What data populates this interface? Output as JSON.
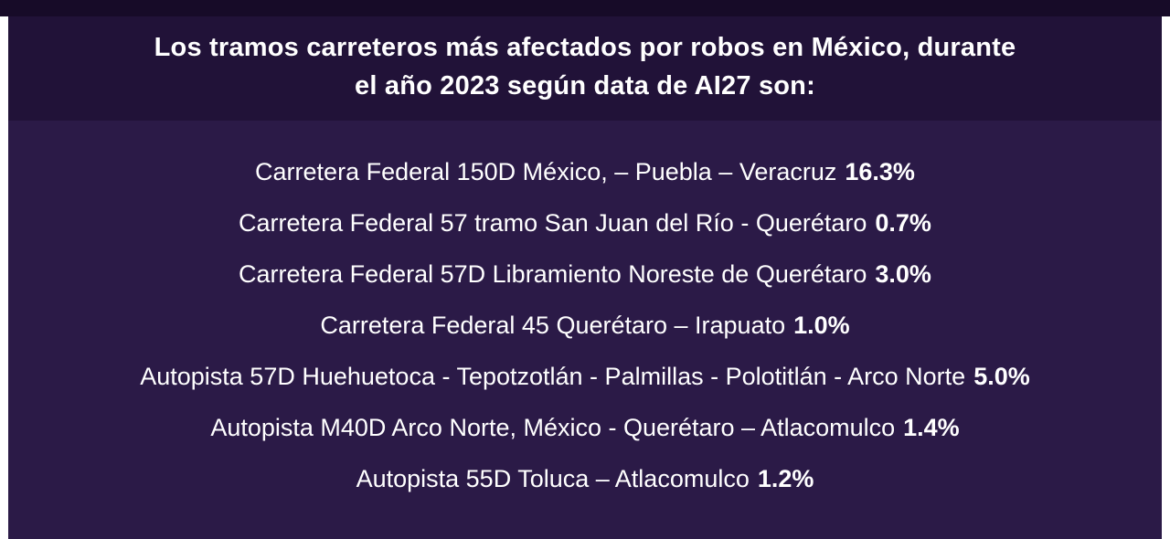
{
  "colors": {
    "bg_top_strip": "#170b28",
    "bg_title": "#211238",
    "bg_body": "#2b1a47",
    "bg_page_margin": "#ffffff",
    "text": "#ffffff"
  },
  "header": {
    "title_lines": [
      "Los tramos carreteros más afectados por robos en México, durante",
      "el año 2023 según data de AI27 son:"
    ]
  },
  "routes": [
    {
      "label": "Carretera Federal 150D México, – Puebla – Veracruz",
      "value": "16.3%"
    },
    {
      "label": "Carretera Federal 57 tramo San Juan del Río - Querétaro",
      "value": "0.7%"
    },
    {
      "label": "Carretera Federal 57D Libramiento Noreste de Querétaro",
      "value": "3.0%"
    },
    {
      "label": "Carretera Federal 45 Querétaro – Irapuato",
      "value": "1.0%"
    },
    {
      "label": "Autopista 57D Huehuetoca - Tepotzotlán - Palmillas - Polotitlán - Arco Norte",
      "value": "5.0%"
    },
    {
      "label": "Autopista M40D Arco Norte, México - Querétaro – Atlacomulco",
      "value": "1.4%"
    },
    {
      "label": "Autopista 55D Toluca – Atlacomulco",
      "value": "1.2%"
    }
  ]
}
